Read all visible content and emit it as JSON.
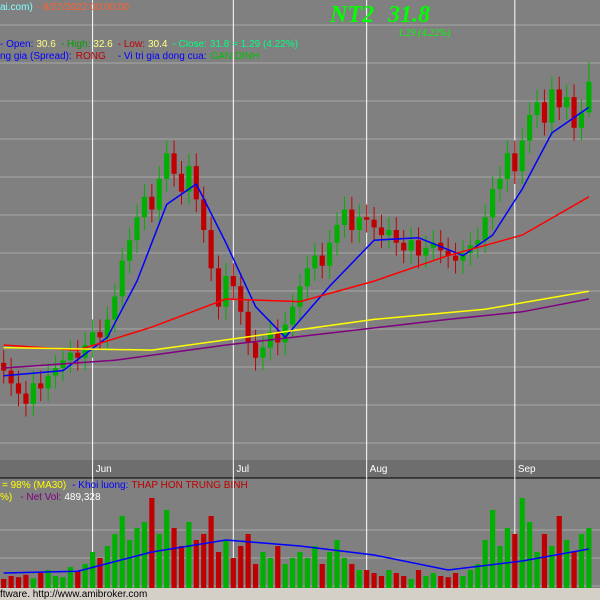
{
  "header": {
    "source": "ai.com)",
    "datetime": "- 9/27/2022 00:00:00",
    "symbol": "NT2",
    "last": "31.8",
    "change": "1.29 (4.22%)",
    "open_label": "- Open:",
    "open": "30.6",
    "high_label": "- High:",
    "high": "32.6",
    "low_label": "- Low:",
    "low": "30.4",
    "close_label": "- Close:",
    "close": "31.8 = 1.29 (4.22%)",
    "spread_label": "ng gia (Spread):",
    "spread": "RONG",
    "position_label": "- Vi tri gia dong cua:",
    "position": "GAN DINH"
  },
  "volume_header": {
    "ratio": "= 98% (MA30)",
    "volume_label": "- Khoi luong:",
    "volume_state": "THAP HON TRUNG BINH",
    "pct_tail": "%)",
    "netvol_label": "- Net Vol:",
    "netvol": "489,328"
  },
  "footer": "ftware. http://www.amibroker.com",
  "chart_data": [
    {
      "type": "candlestick",
      "xlim": [
        -0.5,
        80.5
      ],
      "ylim": [
        17,
        35
      ],
      "xticks": [
        {
          "value": 12,
          "label": "Jun"
        },
        {
          "value": 31,
          "label": "Jul"
        },
        {
          "value": 49,
          "label": "Aug"
        },
        {
          "value": 69,
          "label": "Sep"
        }
      ],
      "up_color": "#00b000",
      "down_color": "#c00000",
      "open": [
        20.8,
        20.5,
        20.0,
        19.6,
        19.2,
        20.0,
        19.8,
        20.3,
        20.6,
        20.9,
        21.2,
        21.0,
        21.5,
        22.0,
        21.8,
        22.5,
        23.4,
        24.8,
        25.6,
        26.5,
        27.3,
        26.8,
        28.0,
        29.0,
        28.2,
        27.5,
        28.5,
        27.2,
        26.0,
        24.5,
        23.0,
        24.2,
        23.8,
        22.8,
        21.6,
        21.0,
        21.4,
        22.0,
        21.6,
        22.3,
        23.0,
        23.8,
        24.5,
        25.0,
        24.6,
        25.5,
        26.2,
        26.8,
        26.0,
        26.5,
        26.4,
        26.1,
        25.8,
        26.0,
        25.5,
        25.2,
        25.6,
        25.0,
        25.3,
        25.5,
        25.2,
        25.0,
        24.8,
        25.1,
        25.4,
        25.6,
        26.5,
        27.6,
        28.0,
        29.0,
        28.3,
        29.5,
        30.5,
        31.0,
        30.2,
        31.5,
        30.8,
        31.2,
        30.0,
        30.6
      ],
      "high": [
        21.3,
        21.0,
        20.5,
        20.1,
        20.5,
        20.5,
        20.8,
        21.1,
        21.4,
        21.7,
        21.7,
        22.0,
        22.5,
        22.5,
        23.0,
        23.9,
        25.3,
        26.1,
        27.0,
        27.8,
        27.8,
        28.5,
        29.5,
        29.5,
        28.7,
        29.0,
        29.0,
        27.7,
        26.5,
        25.0,
        24.7,
        24.7,
        24.3,
        23.3,
        22.1,
        21.9,
        22.5,
        22.5,
        22.8,
        23.5,
        24.3,
        25.0,
        25.5,
        25.5,
        26.0,
        26.7,
        27.3,
        27.3,
        27.0,
        27.0,
        26.9,
        26.6,
        26.5,
        26.5,
        26.0,
        26.1,
        26.1,
        25.8,
        26.0,
        26.0,
        25.7,
        25.5,
        25.6,
        25.9,
        26.1,
        27.0,
        28.1,
        28.5,
        29.5,
        29.5,
        30.0,
        31.0,
        31.5,
        31.5,
        32.0,
        32.0,
        31.7,
        31.7,
        31.1,
        32.6
      ],
      "low": [
        20.0,
        19.5,
        19.1,
        18.7,
        18.7,
        19.3,
        19.3,
        19.8,
        20.1,
        20.4,
        20.5,
        20.5,
        21.0,
        21.3,
        21.3,
        22.0,
        22.9,
        24.3,
        25.1,
        26.0,
        26.3,
        26.3,
        27.5,
        27.7,
        27.0,
        27.0,
        26.7,
        25.5,
        24.0,
        22.5,
        22.5,
        23.3,
        22.3,
        21.1,
        20.5,
        20.5,
        20.9,
        21.1,
        21.1,
        21.8,
        22.5,
        23.3,
        24.0,
        24.1,
        24.1,
        25.0,
        25.7,
        25.5,
        25.5,
        25.9,
        25.6,
        25.3,
        25.3,
        25.0,
        24.7,
        24.7,
        24.5,
        24.5,
        24.8,
        24.7,
        24.5,
        24.3,
        24.3,
        24.6,
        24.9,
        25.1,
        26.0,
        27.1,
        27.5,
        27.8,
        27.8,
        29.0,
        30.0,
        29.7,
        29.7,
        30.3,
        30.3,
        29.5,
        29.5,
        30.4
      ],
      "close": [
        20.5,
        20.0,
        19.6,
        19.2,
        20.0,
        19.8,
        20.3,
        20.6,
        20.9,
        21.2,
        21.0,
        21.5,
        22.0,
        21.8,
        22.5,
        23.4,
        24.8,
        25.6,
        26.5,
        27.3,
        26.8,
        28.0,
        29.0,
        28.2,
        27.5,
        28.5,
        27.2,
        26.0,
        24.5,
        23.0,
        24.2,
        23.8,
        22.8,
        21.6,
        21.0,
        21.4,
        22.0,
        21.6,
        22.3,
        23.0,
        23.8,
        24.5,
        25.0,
        24.6,
        25.5,
        26.2,
        26.8,
        26.0,
        26.5,
        26.4,
        26.1,
        25.8,
        26.0,
        25.5,
        25.2,
        25.6,
        25.0,
        25.3,
        25.5,
        25.2,
        25.0,
        24.8,
        25.1,
        25.4,
        25.6,
        26.5,
        27.6,
        28.0,
        29.0,
        28.3,
        29.5,
        30.5,
        31.0,
        30.2,
        31.5,
        30.8,
        31.2,
        30.0,
        30.6,
        31.8
      ],
      "series": [
        {
          "color": "#0000ff",
          "x": [
            0,
            8,
            14,
            18,
            22,
            26,
            30,
            34,
            38,
            44,
            50,
            56,
            62,
            66,
            70,
            74,
            79
          ],
          "values": [
            20.3,
            20.5,
            21.8,
            24.0,
            27.0,
            27.8,
            25.5,
            23.0,
            21.8,
            23.8,
            25.6,
            25.7,
            25.0,
            25.8,
            27.6,
            29.8,
            30.8
          ]
        },
        {
          "color": "#ff0000",
          "x": [
            0,
            10,
            20,
            30,
            40,
            50,
            60,
            70,
            79
          ],
          "values": [
            21.5,
            21.3,
            22.2,
            23.3,
            23.2,
            24.0,
            25.0,
            25.8,
            27.3
          ]
        },
        {
          "color": "#ffff00",
          "x": [
            0,
            20,
            35,
            50,
            65,
            79
          ],
          "values": [
            21.4,
            21.3,
            21.9,
            22.5,
            22.9,
            23.6
          ]
        },
        {
          "color": "#800080",
          "x": [
            0,
            15,
            30,
            45,
            60,
            70,
            79
          ],
          "values": [
            20.6,
            20.9,
            21.5,
            22.0,
            22.5,
            22.8,
            23.3
          ]
        }
      ]
    },
    {
      "type": "bar",
      "ylim": [
        0,
        1800000
      ],
      "values": [
        150000,
        200000,
        180000,
        220000,
        160000,
        250000,
        300000,
        200000,
        180000,
        350000,
        280000,
        400000,
        600000,
        500000,
        700000,
        900000,
        1200000,
        800000,
        1000000,
        1100000,
        1500000,
        900000,
        1300000,
        1000000,
        700000,
        1100000,
        800000,
        900000,
        1200000,
        600000,
        800000,
        500000,
        700000,
        900000,
        400000,
        600000,
        500000,
        700000,
        400000,
        500000,
        600000,
        500000,
        700000,
        400000,
        600000,
        800000,
        500000,
        400000,
        300000,
        300000,
        250000,
        200000,
        300000,
        250000,
        200000,
        150000,
        300000,
        200000,
        250000,
        200000,
        180000,
        250000,
        200000,
        300000,
        400000,
        800000,
        1300000,
        700000,
        1000000,
        900000,
        1500000,
        1100000,
        600000,
        900000,
        700000,
        1200000,
        800000,
        600000,
        900000,
        1000000
      ],
      "series": [
        {
          "color": "#0000ff",
          "x": [
            0,
            10,
            20,
            30,
            40,
            50,
            60,
            70,
            79
          ],
          "values": [
            250000,
            280000,
            600000,
            800000,
            700000,
            550000,
            300000,
            450000,
            650000
          ]
        }
      ]
    }
  ]
}
